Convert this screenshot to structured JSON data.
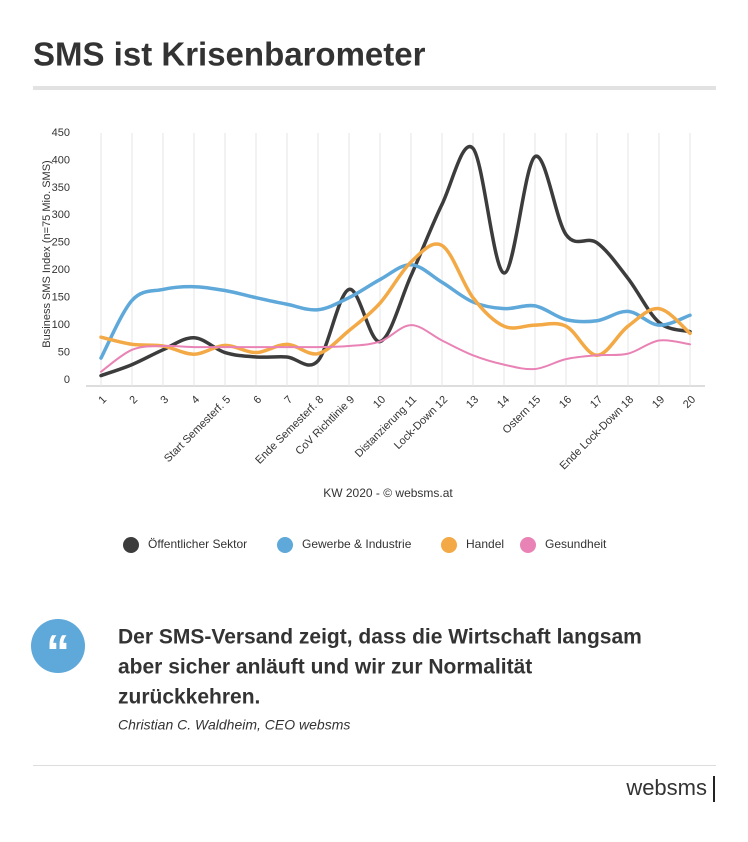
{
  "chart_data": {
    "type": "line",
    "title": "SMS ist Krisenbarometer",
    "y_label": "Business SMS Index (n=75 Mio. SMS)",
    "x_label": "KW 2020 - © websms.at",
    "categories": [
      "1",
      "2",
      "3",
      "4",
      "Start Semesterf. 5",
      "6",
      "7",
      "Ende Semesterf. 8",
      "CoV Richtlinie 9",
      "10",
      "Distanzierung 11",
      "Lock-Down 12",
      "13",
      "14",
      "Ostern 15",
      "16",
      "17",
      "Ende Lock-Down 18",
      "19",
      "20"
    ],
    "series": [
      {
        "name": "Öffentlicher Sektor",
        "color": "#3c3c3c",
        "values": [
          8,
          28,
          55,
          77,
          50,
          42,
          42,
          35,
          165,
          70,
          190,
          320,
          422,
          195,
          407,
          265,
          250,
          185,
          105,
          88
        ]
      },
      {
        "name": "Gewerbe & Industrie",
        "color": "#5ea8da",
        "values": [
          40,
          145,
          165,
          170,
          163,
          150,
          138,
          128,
          150,
          183,
          210,
          178,
          142,
          130,
          135,
          110,
          108,
          125,
          100,
          118
        ]
      },
      {
        "name": "Handel",
        "color": "#f3a945",
        "values": [
          78,
          65,
          62,
          47,
          63,
          50,
          65,
          48,
          90,
          140,
          215,
          245,
          150,
          98,
          100,
          98,
          45,
          98,
          130,
          85
        ]
      },
      {
        "name": "Gesundheit",
        "color": "#e982b5",
        "values": [
          15,
          55,
          62,
          60,
          60,
          60,
          60,
          60,
          62,
          70,
          100,
          72,
          45,
          28,
          20,
          38,
          45,
          48,
          72,
          65
        ]
      }
    ],
    "ylim": [
      0,
      450
    ],
    "yticks": [
      0,
      50,
      100,
      150,
      200,
      250,
      300,
      350,
      400,
      450
    ],
    "grid": true,
    "legend": "bottom"
  },
  "quote": {
    "icon": "“",
    "lines": [
      "Der SMS-Versand zeigt, dass die Wirtschaft langsam",
      "aber sicher anläuft und wir zur Normalität",
      "zurückkehren."
    ],
    "author": "Christian C. Waldheim, CEO websms"
  },
  "brand": "websms"
}
